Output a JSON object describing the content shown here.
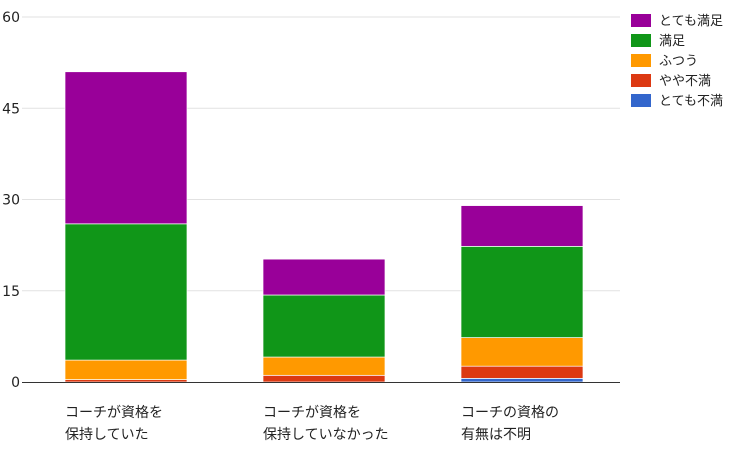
{
  "chart_data": {
    "type": "bar",
    "stacked": true,
    "categories": [
      [
        "コーチが資格を",
        "保持していた"
      ],
      [
        "コーチが資格を",
        "保持していなかった"
      ],
      [
        "コーチの資格の",
        "有無は不明"
      ]
    ],
    "series": [
      {
        "name": "とても不満",
        "color": "#3366cc",
        "values": [
          0,
          0,
          0.6
        ]
      },
      {
        "name": "やや不満",
        "color": "#dc3912",
        "values": [
          0.4,
          1.1,
          2.0
        ]
      },
      {
        "name": "ふつう",
        "color": "#ff9900",
        "values": [
          3.2,
          3.0,
          4.7
        ]
      },
      {
        "name": "満足",
        "color": "#109618",
        "values": [
          22.4,
          10.2,
          15.0
        ]
      },
      {
        "name": "とても満足",
        "color": "#990099",
        "values": [
          25.0,
          5.9,
          6.7
        ]
      }
    ],
    "yticks": [
      0,
      15,
      30,
      45,
      60
    ],
    "ylim": [
      0,
      60
    ],
    "grid": true,
    "legend": "top-right",
    "title": "",
    "xlabel": "",
    "ylabel": ""
  }
}
